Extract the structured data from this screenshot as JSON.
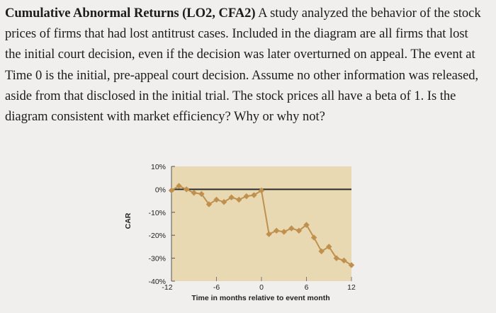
{
  "question": {
    "title": "Cumulative Abnormal Returns (LO2, CFA2)",
    "body": " A study analyzed the behavior of the stock prices of firms that had lost antitrust cases. Included in the diagram are all firms that lost the initial court decision, even if the decision was later overturned on appeal. The event at Time 0 is the initial, pre-appeal court decision. Assume no other information was released, aside from that disclosed in the initial trial. The stock prices all have a beta of 1. Is the diagram consistent with market efficiency? Why or why not?"
  },
  "colors": {
    "plot_background": "#e8d9b2",
    "series_line": "#c0914e",
    "reference_line": "#2b2b2b"
  },
  "chart_data": {
    "type": "line",
    "title": "",
    "xlabel": "Time in months relative to event month",
    "ylabel": "CAR",
    "xlim": [
      -12,
      12
    ],
    "ylim": [
      -40,
      10
    ],
    "x_ticks": [
      -12,
      -6,
      0,
      6,
      12
    ],
    "x_tick_labels": [
      "-12",
      "-6",
      "0",
      "6",
      "12"
    ],
    "y_ticks": [
      10,
      0,
      -10,
      -20,
      -30,
      -40
    ],
    "y_tick_labels": [
      "10%",
      "0%",
      "-10%",
      "-20%",
      "-30%",
      "-40%"
    ],
    "reference_line_y": 0,
    "grid": false,
    "series": [
      {
        "x": [
          -12,
          -11,
          -10,
          -9,
          -8,
          -7,
          -6,
          -5,
          -4,
          -3,
          -2,
          -1,
          0,
          1,
          2,
          3,
          4,
          5,
          6,
          7,
          8,
          9,
          10,
          11,
          12
        ],
        "y": [
          -0.5,
          1.5,
          0.0,
          -1.5,
          -2.0,
          -6.5,
          -4.5,
          -5.5,
          -3.5,
          -4.5,
          -3.0,
          -2.5,
          -0.5,
          -19.5,
          -18.0,
          -18.5,
          -17.0,
          -18.0,
          -15.5,
          -21.0,
          -27.0,
          -25.0,
          -30.0,
          -31.0,
          -33.0
        ]
      }
    ]
  }
}
